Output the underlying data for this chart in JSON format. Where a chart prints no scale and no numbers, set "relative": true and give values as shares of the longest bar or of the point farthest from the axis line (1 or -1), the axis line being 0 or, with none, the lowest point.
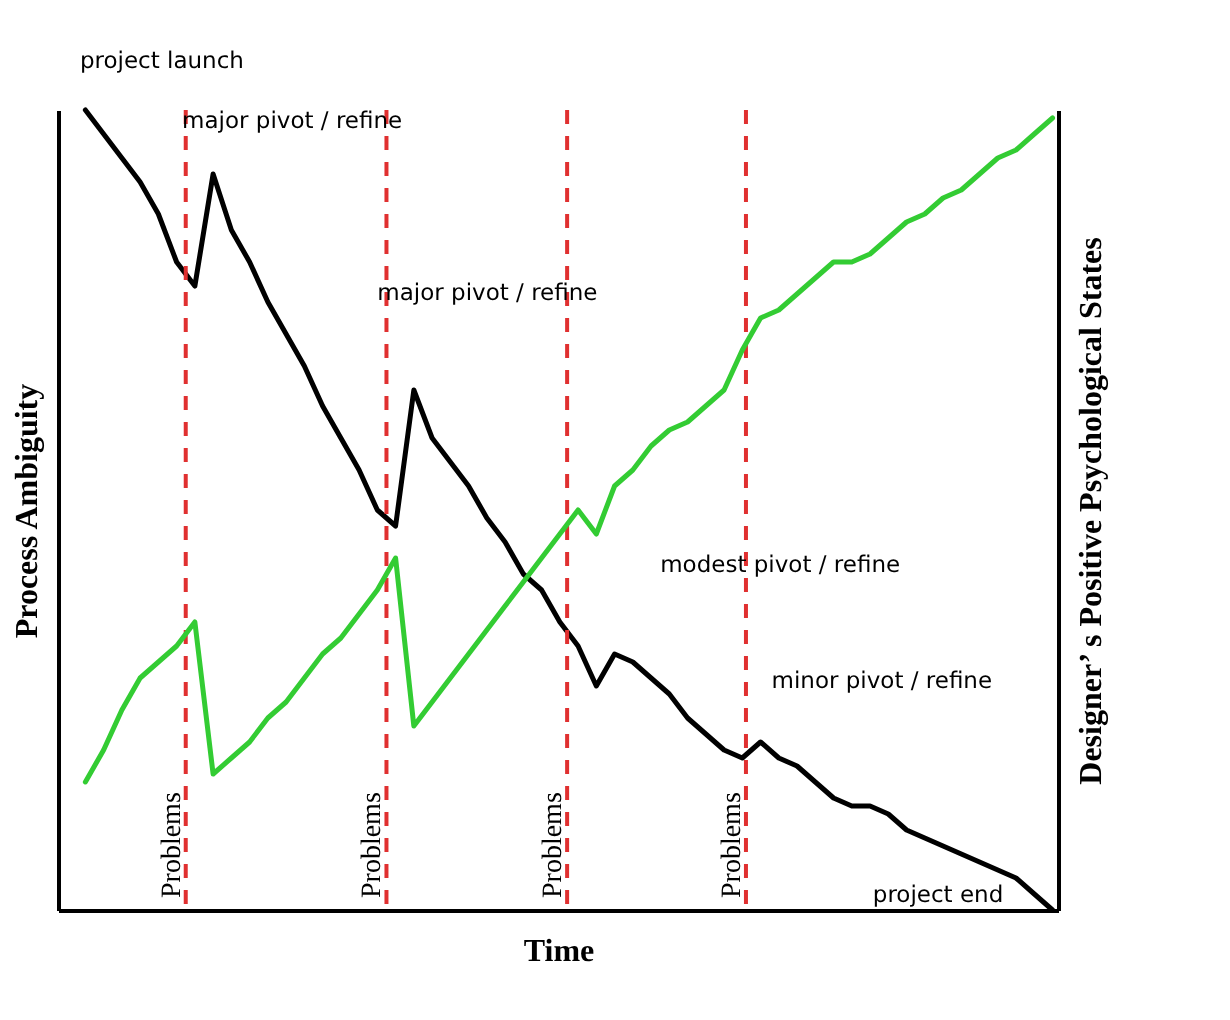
{
  "chart_data": {
    "type": "line",
    "relative": true,
    "xlabel": "Time",
    "ylabel": "Process Ambiguity",
    "y2label": "Designer’ s Positive Psychological States",
    "categories": [
      null,
      null,
      null,
      null,
      null,
      null,
      null,
      null,
      null,
      null,
      null,
      null,
      null,
      null,
      null,
      null,
      null,
      null,
      null,
      null,
      null,
      null,
      null,
      null,
      null,
      null,
      null,
      null,
      null,
      null,
      null,
      null,
      null,
      null,
      null,
      null,
      null,
      null,
      null,
      null,
      null,
      null,
      null,
      null,
      null,
      null,
      null,
      null,
      null,
      null,
      null,
      null,
      null,
      null
    ],
    "series": [
      {
        "color": "#000000",
        "values": [
          1.0,
          0.97,
          0.94,
          0.91,
          0.87,
          0.81,
          0.78,
          0.92,
          0.85,
          0.81,
          0.76,
          0.72,
          0.68,
          0.63,
          0.59,
          0.55,
          0.5,
          0.48,
          0.65,
          0.59,
          0.56,
          0.53,
          0.49,
          0.46,
          0.42,
          0.4,
          0.36,
          0.33,
          0.28,
          0.32,
          0.31,
          0.29,
          0.27,
          0.24,
          0.22,
          0.2,
          0.19,
          0.21,
          0.19,
          0.18,
          0.16,
          0.14,
          0.13,
          0.13,
          0.12,
          0.1,
          0.09,
          0.08,
          0.07,
          0.06,
          0.05,
          0.04,
          0.02,
          0.0
        ]
      },
      {
        "color": "#33cc33",
        "values": [
          0.16,
          0.2,
          0.25,
          0.29,
          0.31,
          0.33,
          0.36,
          0.17,
          0.19,
          0.21,
          0.24,
          0.26,
          0.29,
          0.32,
          0.34,
          0.37,
          0.4,
          0.44,
          0.23,
          0.26,
          0.29,
          0.32,
          0.35,
          0.38,
          0.41,
          0.44,
          0.47,
          0.5,
          0.47,
          0.53,
          0.55,
          0.58,
          0.6,
          0.61,
          0.63,
          0.65,
          0.7,
          0.74,
          0.75,
          0.77,
          0.79,
          0.81,
          0.81,
          0.82,
          0.84,
          0.86,
          0.87,
          0.89,
          0.9,
          0.92,
          0.94,
          0.95,
          0.97,
          0.99
        ]
      }
    ],
    "annotations": [
      "project launch",
      "major pivot / refine",
      "major pivot / refine",
      "modest pivot / refine",
      "minor pivot / refine",
      "project end",
      "Problems",
      "Problems",
      "Problems",
      "Problems"
    ]
  }
}
